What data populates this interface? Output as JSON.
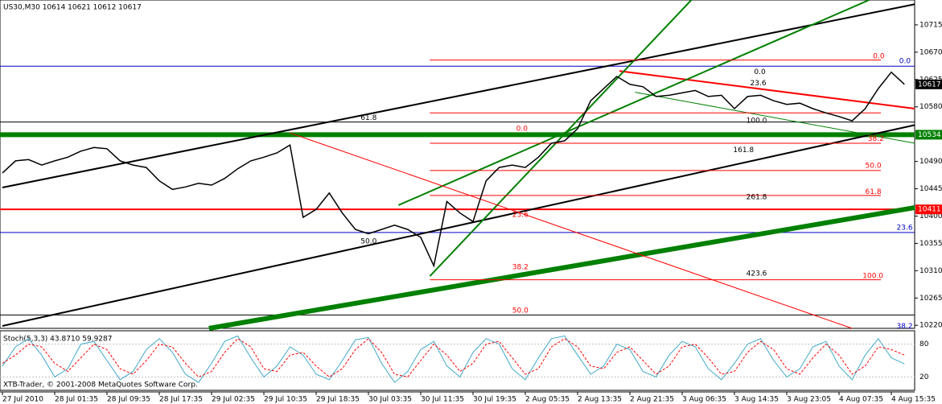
{
  "chart_data": [
    {
      "type": "line",
      "title": "US30,M30 10614 10621 10612 10617",
      "footer": "XTB-Trader, © 2001-2008 MetaQuotes Software Corp.",
      "categories": [
        "27 Jul 2010",
        null,
        null,
        null,
        "28 Jul 01:35",
        null,
        null,
        null,
        "28 Jul 09:35",
        null,
        null,
        null,
        "28 Jul 17:35",
        null,
        null,
        null,
        "29 Jul 02:35",
        null,
        null,
        null,
        "29 Jul 10:35",
        null,
        null,
        null,
        "29 Jul 18:35",
        null,
        null,
        null,
        "30 Jul 03:35",
        null,
        null,
        null,
        "30 Jul 11:35",
        null,
        null,
        null,
        "30 Jul 19:35",
        null,
        null,
        null,
        "2 Aug 05:35",
        null,
        null,
        null,
        "2 Aug 13:35",
        null,
        null,
        null,
        "2 Aug 21:35",
        null,
        null,
        null,
        "3 Aug 06:35",
        null,
        null,
        null,
        "3 Aug 14:35",
        null,
        null,
        null,
        "3 Aug 23:05",
        null,
        null,
        null,
        "4 Aug 07:35",
        null,
        null,
        null,
        "4 Aug 15:35",
        null
      ],
      "values": [
        10471,
        10491,
        10493,
        10484,
        10491,
        10497,
        10507,
        10513,
        10511,
        10491,
        10484,
        10480,
        10458,
        10444,
        10448,
        10454,
        10451,
        10462,
        10478,
        10491,
        10497,
        10504,
        10517,
        10398,
        10411,
        10438,
        10405,
        10378,
        10371,
        10378,
        10385,
        10378,
        10365,
        10318,
        10424,
        10405,
        10391,
        10458,
        10480,
        10484,
        10480,
        10497,
        10520,
        10524,
        10544,
        10590,
        10610,
        10630,
        10617,
        10613,
        10597,
        10599,
        10603,
        10607,
        10597,
        10599,
        10577,
        10597,
        10599,
        10590,
        10584,
        10586,
        10577,
        10570,
        10564,
        10557,
        10577,
        10610,
        10637,
        10617
      ],
      "color": "#000000",
      "ylim": [
        10215,
        10756
      ],
      "yticks": [
        10715,
        10670,
        10625,
        10580,
        10490,
        10445,
        10400,
        10355,
        10310,
        10265,
        10220
      ],
      "levels": [
        {
          "price": 10647,
          "color": "#0000c0",
          "width": 1
        },
        {
          "price": 10373,
          "color": "#0000c0",
          "width": 1
        },
        {
          "price": 10555,
          "color": "#000000",
          "width": 1
        },
        {
          "price": 10237,
          "color": "#000000",
          "width": 1
        },
        {
          "price": 10534,
          "color": "#008000",
          "width": 6,
          "boxed": true
        },
        {
          "price": 10411,
          "color": "#ff0000",
          "width": 2,
          "boxed": true
        }
      ],
      "trendlines": [
        {
          "color": "#000000",
          "width": 2,
          "x": [
            0,
            69.8
          ],
          "y": [
            10447,
            10749
          ]
        },
        {
          "color": "#000000",
          "width": 2,
          "x": [
            0,
            69.8
          ],
          "y": [
            10219,
            10550
          ]
        },
        {
          "color": "#008000",
          "width": 6,
          "x": [
            15.8,
            69.8
          ],
          "y": [
            10215,
            10414
          ]
        },
        {
          "color": "#ff0000",
          "width": 2,
          "x": [
            47.2,
            69.8
          ],
          "y": [
            10639,
            10577
          ]
        },
        {
          "color": "#008000",
          "width": 2,
          "x": [
            32.7,
            52.7
          ],
          "y": [
            10301,
            10756
          ]
        },
        {
          "color": "#008000",
          "width": 2,
          "x": [
            30.3,
            66.3
          ],
          "y": [
            10418,
            10756
          ]
        },
        {
          "color": "#008000",
          "width": 1,
          "x": [
            48.4,
            69.8
          ],
          "y": [
            10604,
            10520
          ]
        },
        {
          "color": "#ff0000",
          "width": 1,
          "x": [
            22,
            65
          ],
          "y": [
            10537,
            10215
          ]
        },
        {
          "color": "#ff0000",
          "width": 1,
          "x": [
            32.7,
            67.2
          ],
          "y": [
            10657,
            10657
          ]
        },
        {
          "color": "#ff0000",
          "width": 1,
          "x": [
            32.7,
            67.2
          ],
          "y": [
            10570,
            10570
          ]
        },
        {
          "color": "#ff0000",
          "width": 1,
          "x": [
            32.7,
            67.2
          ],
          "y": [
            10520,
            10520
          ]
        },
        {
          "color": "#ff0000",
          "width": 1,
          "x": [
            32.7,
            67.2
          ],
          "y": [
            10475,
            10475
          ]
        },
        {
          "color": "#ff0000",
          "width": 1,
          "x": [
            32.7,
            67.2
          ],
          "y": [
            10434,
            10434
          ]
        },
        {
          "color": "#ff0000",
          "width": 1,
          "x": [
            32.7,
            67.2
          ],
          "y": [
            10295,
            10295
          ]
        }
      ],
      "annotations": [
        {
          "text": "0.0",
          "at": 66.6,
          "price": 10663,
          "color": "#ff0000"
        },
        {
          "text": "0.0",
          "at": 68.6,
          "price": 10655,
          "color": "#0000c0"
        },
        {
          "text": "38.2",
          "at": 66.2,
          "price": 10527,
          "color": "#ff0000"
        },
        {
          "text": "50.0",
          "at": 66.0,
          "price": 10483,
          "color": "#ff0000"
        },
        {
          "text": "61.8",
          "at": 66.0,
          "price": 10440,
          "color": "#ff0000"
        },
        {
          "text": "23.6",
          "at": 68.4,
          "price": 10381,
          "color": "#0000c0"
        },
        {
          "text": "100.0",
          "at": 65.8,
          "price": 10301,
          "color": "#ff0000"
        },
        {
          "text": "38.2",
          "at": 68.4,
          "price": 10218,
          "color": "#0000c0"
        },
        {
          "text": "61.8",
          "at": 27.4,
          "price": 10562,
          "color": "#000000"
        },
        {
          "text": "0.0",
          "at": 57.5,
          "price": 10637,
          "color": "#000000"
        },
        {
          "text": "23.6",
          "at": 57.2,
          "price": 10619,
          "color": "#000000"
        },
        {
          "text": "100.0",
          "at": 56.9,
          "price": 10557,
          "color": "#000000"
        },
        {
          "text": "161.8",
          "at": 55.9,
          "price": 10509,
          "color": "#000000"
        },
        {
          "text": "261.8",
          "at": 56.9,
          "price": 10431,
          "color": "#000000"
        },
        {
          "text": "423.6",
          "at": 56.9,
          "price": 10305,
          "color": "#000000"
        },
        {
          "text": "50.0",
          "at": 27.4,
          "price": 10358,
          "color": "#000000"
        },
        {
          "text": "0.0",
          "at": 39.3,
          "price": 10544,
          "color": "#ff0000"
        },
        {
          "text": "23.6",
          "at": 39.0,
          "price": 10402,
          "color": "#ff0000"
        },
        {
          "text": "38.2",
          "at": 39.0,
          "price": 10316,
          "color": "#ff0000"
        },
        {
          "text": "50.0",
          "at": 39.0,
          "price": 10244,
          "color": "#ff0000"
        }
      ]
    },
    {
      "type": "line",
      "title": "Stoch(5,3,3) 43.8710 59.9287",
      "ylim": [
        0,
        100
      ],
      "yticks": [
        80,
        20
      ],
      "series": [
        {
          "name": "Main",
          "color": "#40a8c8",
          "dash": false,
          "values": [
            40,
            75,
            90,
            60,
            20,
            35,
            80,
            85,
            50,
            15,
            30,
            70,
            90,
            65,
            25,
            10,
            45,
            85,
            95,
            55,
            20,
            40,
            75,
            60,
            25,
            15,
            50,
            88,
            92,
            45,
            10,
            30,
            70,
            85,
            40,
            20,
            65,
            90,
            80,
            35,
            15,
            55,
            90,
            95,
            60,
            25,
            40,
            80,
            70,
            30,
            20,
            60,
            85,
            75,
            35,
            15,
            45,
            80,
            90,
            50,
            20,
            35,
            75,
            85,
            40,
            15,
            60,
            90,
            55,
            43.871
          ]
        },
        {
          "name": "Signal",
          "color": "#ff0000",
          "dash": true,
          "values": [
            45,
            60,
            80,
            75,
            45,
            30,
            55,
            80,
            70,
            35,
            25,
            50,
            80,
            75,
            45,
            20,
            30,
            65,
            90,
            75,
            35,
            30,
            60,
            65,
            40,
            20,
            35,
            70,
            90,
            65,
            25,
            20,
            50,
            80,
            60,
            30,
            45,
            80,
            85,
            55,
            25,
            35,
            75,
            90,
            75,
            40,
            35,
            65,
            75,
            50,
            25,
            40,
            75,
            80,
            55,
            25,
            30,
            65,
            85,
            70,
            35,
            25,
            55,
            80,
            60,
            25,
            40,
            75,
            70,
            59.9287
          ]
        }
      ]
    }
  ]
}
